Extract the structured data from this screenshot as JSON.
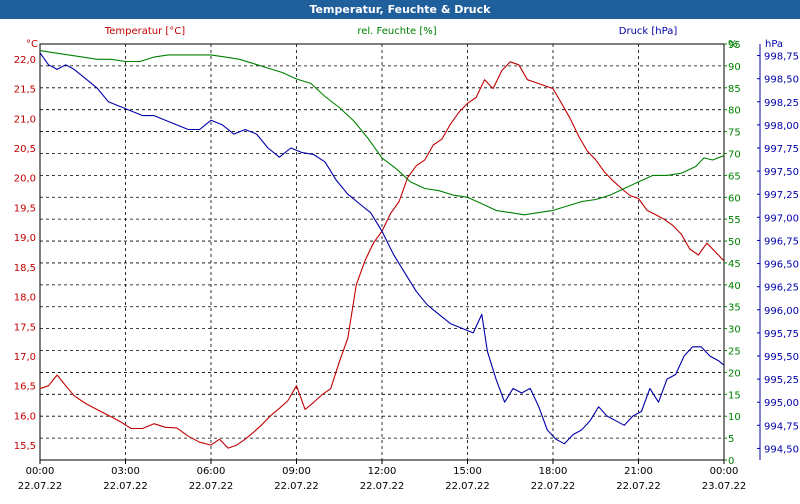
{
  "window": {
    "title": "Temperatur, Feuchte & Druck"
  },
  "chart_data": {
    "type": "line",
    "title": "Temperatur, Feuchte & Druck",
    "grid": true,
    "colors": {
      "temperature": "#c00000",
      "humidity": "#008000",
      "pressure": "#0000aa",
      "grid": "#000000"
    },
    "x": {
      "unit": "hours since 22.07.22 00:00",
      "range": [
        0,
        24
      ],
      "ticks": [
        {
          "time": "00:00",
          "date": "22.07.22"
        },
        {
          "time": "03:00",
          "date": "22.07.22"
        },
        {
          "time": "06:00",
          "date": "22.07.22"
        },
        {
          "time": "09:00",
          "date": "22.07.22"
        },
        {
          "time": "12:00",
          "date": "22.07.22"
        },
        {
          "time": "15:00",
          "date": "22.07.22"
        },
        {
          "time": "18:00",
          "date": "22.07.22"
        },
        {
          "time": "21:00",
          "date": "22.07.22"
        },
        {
          "time": "00:00",
          "date": "23.07.22"
        }
      ]
    },
    "axes": {
      "left": {
        "header": "Temperatur [°C]",
        "unit": "°C",
        "range": [
          15.25,
          22.25
        ],
        "ticks": [
          "15,5",
          "16,0",
          "16,5",
          "17,0",
          "17,5",
          "18,0",
          "18,5",
          "19,0",
          "19,5",
          "20,0",
          "20,5",
          "21,0",
          "21,5",
          "22,0"
        ]
      },
      "middle": {
        "header": "rel. Feuchte [%]",
        "unit": "%",
        "range": [
          0,
          95
        ],
        "ticks": [
          "0",
          "5",
          "10",
          "15",
          "20",
          "25",
          "30",
          "35",
          "40",
          "45",
          "50",
          "55",
          "60",
          "65",
          "70",
          "75",
          "80",
          "85",
          "90",
          "95"
        ]
      },
      "right": {
        "header": "Druck [hPa]",
        "unit": "hPa",
        "range": [
          994.375,
          998.875
        ],
        "ticks": [
          "994,50",
          "994,75",
          "995,00",
          "995,25",
          "995,50",
          "995,75",
          "996,00",
          "996,25",
          "996,50",
          "996,75",
          "997,00",
          "997,25",
          "997,50",
          "997,75",
          "998,00",
          "998,25",
          "998,50",
          "998,75"
        ]
      }
    },
    "series": [
      {
        "name": "Temperatur [°C]",
        "axis": "left",
        "x": [
          0,
          0.3,
          0.6,
          0.9,
          1.2,
          1.6,
          2.0,
          2.4,
          2.8,
          3.2,
          3.6,
          4.0,
          4.4,
          4.8,
          5.2,
          5.6,
          6.0,
          6.3,
          6.6,
          6.9,
          7.2,
          7.5,
          7.8,
          8.1,
          8.4,
          8.7,
          9.0,
          9.3,
          9.6,
          9.9,
          10.2,
          10.5,
          10.8,
          11.1,
          11.4,
          11.7,
          12.0,
          12.3,
          12.6,
          12.9,
          13.2,
          13.5,
          13.8,
          14.1,
          14.4,
          14.7,
          15.0,
          15.3,
          15.6,
          15.9,
          16.2,
          16.5,
          16.8,
          17.1,
          17.4,
          17.7,
          18.0,
          18.3,
          18.6,
          18.9,
          19.2,
          19.5,
          19.8,
          20.1,
          20.4,
          20.7,
          21.0,
          21.3,
          21.6,
          21.9,
          22.2,
          22.5,
          22.8,
          23.1,
          23.4,
          23.7,
          24.0
        ],
        "values": [
          16.45,
          16.5,
          16.68,
          16.5,
          16.33,
          16.2,
          16.1,
          16.0,
          15.9,
          15.78,
          15.78,
          15.86,
          15.8,
          15.79,
          15.65,
          15.55,
          15.5,
          15.6,
          15.45,
          15.5,
          15.6,
          15.72,
          15.85,
          16.0,
          16.12,
          16.25,
          16.5,
          16.1,
          16.22,
          16.35,
          16.45,
          16.9,
          17.3,
          18.2,
          18.6,
          18.9,
          19.1,
          19.4,
          19.6,
          20.0,
          20.2,
          20.3,
          20.55,
          20.65,
          20.9,
          21.1,
          21.25,
          21.35,
          21.65,
          21.5,
          21.8,
          21.95,
          21.9,
          21.65,
          21.6,
          21.55,
          21.5,
          21.25,
          21.0,
          20.7,
          20.45,
          20.3,
          20.1,
          19.95,
          19.82,
          19.7,
          19.65,
          19.45,
          19.38,
          19.3,
          19.2,
          19.05,
          18.8,
          18.7,
          18.9,
          18.75,
          18.6
        ]
      },
      {
        "name": "rel. Feuchte [%]",
        "axis": "middle",
        "x": [
          0,
          0.5,
          1.0,
          1.5,
          2.0,
          2.5,
          3.0,
          3.5,
          4.0,
          4.5,
          5.0,
          5.5,
          6.0,
          6.5,
          7.0,
          7.5,
          8.0,
          8.5,
          9.0,
          9.5,
          10.0,
          10.5,
          11.0,
          11.5,
          12.0,
          12.5,
          13.0,
          13.5,
          14.0,
          14.5,
          15.0,
          15.5,
          16.0,
          16.5,
          17.0,
          17.5,
          18.0,
          18.5,
          19.0,
          19.5,
          20.0,
          20.5,
          21.0,
          21.5,
          22.0,
          22.5,
          23.0,
          23.3,
          23.6,
          24.0
        ],
        "values": [
          93.5,
          93.0,
          92.5,
          92.0,
          91.5,
          91.5,
          91.0,
          91.0,
          92.0,
          92.5,
          92.5,
          92.5,
          92.5,
          92.0,
          91.5,
          90.5,
          89.5,
          88.5,
          87.0,
          86.0,
          83.0,
          80.5,
          77.5,
          73.5,
          69.0,
          66.5,
          63.5,
          62.0,
          61.5,
          60.5,
          60.0,
          58.5,
          57.0,
          56.5,
          56.0,
          56.5,
          57.0,
          58.0,
          59.0,
          59.5,
          60.5,
          62.0,
          63.5,
          65.0,
          65.0,
          65.5,
          67.0,
          69.0,
          68.5,
          69.5
        ]
      },
      {
        "name": "Druck [hPa]",
        "axis": "right",
        "x": [
          0,
          0.3,
          0.6,
          0.9,
          1.2,
          1.6,
          2.0,
          2.4,
          2.8,
          3.2,
          3.6,
          4.0,
          4.4,
          4.8,
          5.2,
          5.6,
          6.0,
          6.4,
          6.8,
          7.2,
          7.6,
          8.0,
          8.4,
          8.8,
          9.2,
          9.6,
          10.0,
          10.4,
          10.8,
          11.2,
          11.6,
          12.0,
          12.4,
          12.8,
          13.2,
          13.6,
          14.0,
          14.4,
          14.8,
          15.2,
          15.5,
          15.7,
          16.0,
          16.3,
          16.6,
          16.9,
          17.2,
          17.5,
          17.8,
          18.1,
          18.4,
          18.7,
          19.0,
          19.3,
          19.6,
          19.9,
          20.2,
          20.5,
          20.8,
          21.1,
          21.4,
          21.7,
          22.0,
          22.3,
          22.6,
          22.9,
          23.2,
          23.5,
          23.8,
          24.0
        ],
        "values": [
          998.78,
          998.65,
          998.6,
          998.65,
          998.6,
          998.5,
          998.4,
          998.25,
          998.2,
          998.15,
          998.1,
          998.1,
          998.05,
          998.0,
          997.95,
          997.95,
          998.05,
          998.0,
          997.9,
          997.95,
          997.9,
          997.75,
          997.65,
          997.75,
          997.7,
          997.68,
          997.6,
          997.4,
          997.25,
          997.15,
          997.05,
          996.85,
          996.6,
          996.4,
          996.2,
          996.05,
          995.95,
          995.85,
          995.8,
          995.75,
          995.95,
          995.55,
          995.25,
          995.0,
          995.15,
          995.1,
          995.15,
          994.95,
          994.7,
          994.6,
          994.55,
          994.65,
          994.7,
          994.8,
          994.95,
          994.85,
          994.8,
          994.75,
          994.85,
          994.9,
          995.15,
          995.0,
          995.25,
          995.3,
          995.5,
          995.6,
          995.6,
          995.5,
          995.45,
          995.4
        ]
      }
    ]
  }
}
